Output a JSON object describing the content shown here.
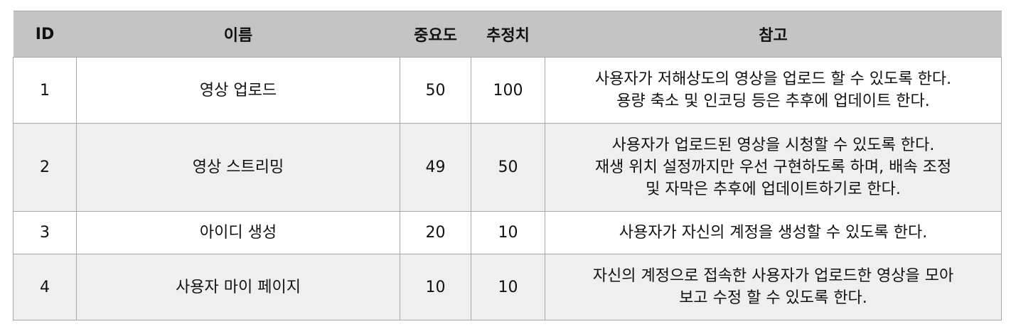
{
  "table": {
    "headers": {
      "id": "ID",
      "name": "이름",
      "importance": "중요도",
      "estimate": "추정치",
      "note": "참고"
    },
    "rows": [
      {
        "id": "1",
        "name": "영상 업로드",
        "importance": "50",
        "estimate": "100",
        "note": "사용자가 저해상도의 영상을 업로드 할 수 있도록 한다.\n용량 축소 및 인코딩 등은 추후에 업데이트 한다."
      },
      {
        "id": "2",
        "name": "영상 스트리밍",
        "importance": "49",
        "estimate": "50",
        "note": "사용자가 업로드된 영상을 시청할 수 있도록 한다.\n재생 위치 설정까지만 우선 구현하도록 하며, 배속 조정\n및 자막은 추후에 업데이트하기로 한다."
      },
      {
        "id": "3",
        "name": "아이디 생성",
        "importance": "20",
        "estimate": "10",
        "note": "사용자가 자신의 계정을 생성할 수 있도록 한다."
      },
      {
        "id": "4",
        "name": "사용자 마이 페이지",
        "importance": "10",
        "estimate": "10",
        "note": "자신의 계정으로 접속한 사용자가 업로드한 영상을 모아\n보고 수정 할 수 있도록 한다."
      }
    ]
  }
}
